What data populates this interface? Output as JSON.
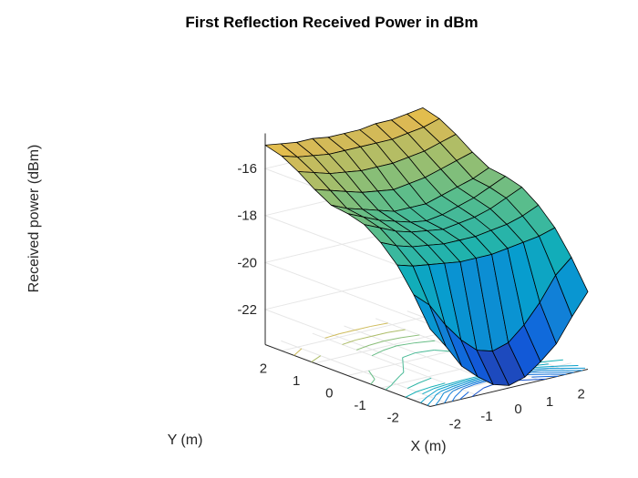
{
  "chart_data": {
    "type": "surface",
    "title": "First Reflection Received Power in dBm",
    "xlabel": "X (m)",
    "ylabel": "Y (m)",
    "zlabel": "Received power (dBm)",
    "x_ticks": [
      "-2",
      "-1",
      "0",
      "1",
      "2"
    ],
    "y_ticks": [
      "-2",
      "-1",
      "0",
      "1",
      "2"
    ],
    "z_ticks": [
      "-16",
      "-18",
      "-20",
      "-22"
    ],
    "xlim": [
      -2.5,
      2.5
    ],
    "ylim": [
      -2.5,
      2.5
    ],
    "zlim": [
      -23.5,
      -14.5
    ],
    "colormap": "parula",
    "contour_on_floor": true,
    "grid": true,
    "x": [
      -2.5,
      -2,
      -1.5,
      -1,
      -0.5,
      0,
      0.5,
      1,
      1.5,
      2,
      2.5
    ],
    "y": [
      -2.5,
      -2,
      -1.5,
      -1,
      -0.5,
      0,
      0.5,
      1,
      1.5,
      2,
      2.5
    ],
    "z": [
      [
        -20.2,
        -21.1,
        -22.1,
        -22.7,
        -23.2,
        -23.4,
        -23.2,
        -22.7,
        -22.1,
        -21.1,
        -20.2
      ],
      [
        -19.0,
        -19.6,
        -20.6,
        -21.4,
        -22.0,
        -22.2,
        -22.0,
        -21.4,
        -20.6,
        -19.6,
        -19.0
      ],
      [
        -18.0,
        -18.2,
        -18.3,
        -18.4,
        -18.5,
        -18.5,
        -18.5,
        -18.4,
        -18.3,
        -18.2,
        -18.0
      ],
      [
        -17.3,
        -17.6,
        -17.8,
        -17.9,
        -18.0,
        -18.0,
        -18.0,
        -17.9,
        -17.8,
        -17.6,
        -17.3
      ],
      [
        -16.8,
        -17.1,
        -17.4,
        -17.6,
        -17.7,
        -17.8,
        -17.7,
        -17.6,
        -17.4,
        -17.1,
        -16.8
      ],
      [
        -16.6,
        -16.9,
        -17.2,
        -17.4,
        -17.6,
        -17.7,
        -17.6,
        -17.4,
        -17.2,
        -16.9,
        -16.6
      ],
      [
        -16.5,
        -16.8,
        -17.0,
        -17.2,
        -17.4,
        -17.4,
        -17.4,
        -17.2,
        -17.0,
        -16.8,
        -16.5
      ],
      [
        -16.1,
        -16.3,
        -16.5,
        -16.7,
        -16.8,
        -16.9,
        -16.8,
        -16.7,
        -16.5,
        -16.3,
        -16.1
      ],
      [
        -15.6,
        -15.8,
        -16.0,
        -16.1,
        -16.2,
        -16.2,
        -16.2,
        -16.1,
        -16.0,
        -15.8,
        -15.6
      ],
      [
        -15.2,
        -15.4,
        -15.5,
        -15.6,
        -15.6,
        -15.6,
        -15.6,
        -15.6,
        -15.5,
        -15.4,
        -15.2
      ],
      [
        -15.0,
        -15.1,
        -15.2,
        -15.2,
        -15.3,
        -15.3,
        -15.3,
        -15.2,
        -15.2,
        -15.1,
        -15.0
      ]
    ]
  }
}
